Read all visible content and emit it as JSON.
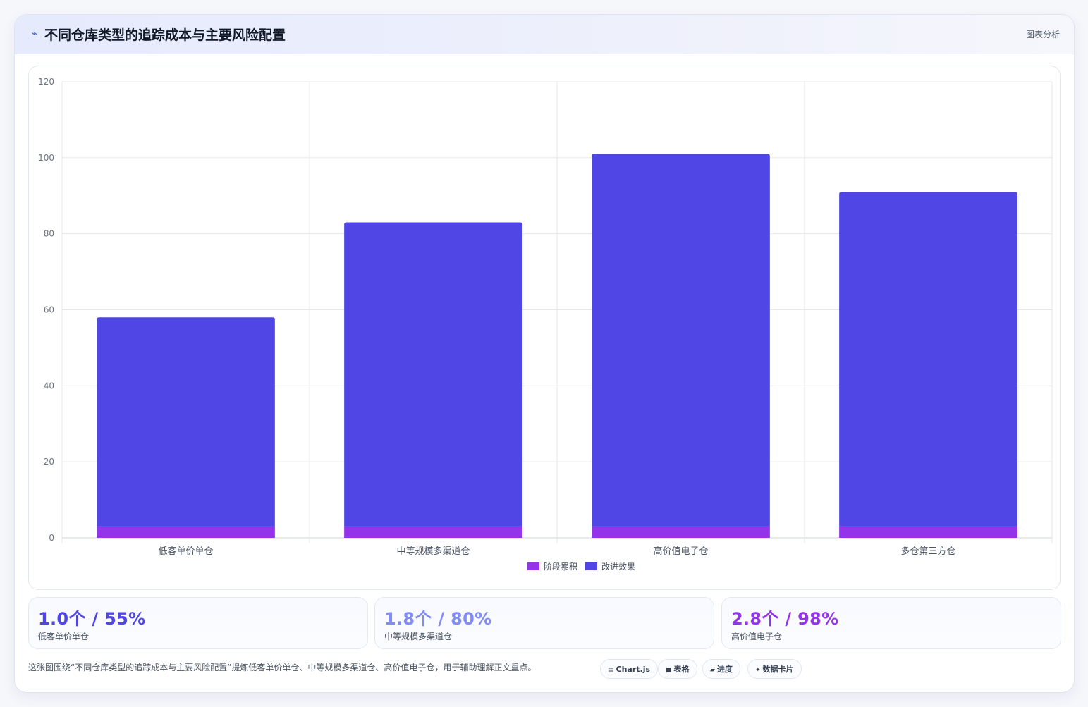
{
  "header": {
    "icon": "trend-line-icon",
    "title": "不同仓库类型的追踪成本与主要风险配置",
    "tag": "图表分析"
  },
  "colors": {
    "accent": "#4f46e5",
    "stage_series": "#9333ea",
    "improve_series": "#4f46e5",
    "stat1": "#4f46e5",
    "stat2": "#818cf8",
    "stat3": "#9333ea"
  },
  "chart_data": {
    "type": "bar",
    "stacked": true,
    "categories": [
      "低客单价单仓",
      "中等规模多渠道仓",
      "高价值电子仓",
      "多仓第三方仓"
    ],
    "series": [
      {
        "name": "阶段累积",
        "color": "#9333ea",
        "values": [
          3,
          3,
          3,
          3
        ]
      },
      {
        "name": "改进效果",
        "color": "#4f46e5",
        "values": [
          55,
          80,
          98,
          88
        ]
      }
    ],
    "ylim": [
      0,
      120
    ],
    "yticks": [
      0,
      20,
      40,
      60,
      80,
      100,
      120
    ],
    "grid": true,
    "legend": "bottom-center",
    "xlabel": "",
    "ylabel": ""
  },
  "stats": [
    {
      "value": "1.0个 / 55%",
      "label": "低客单价单仓"
    },
    {
      "value": "1.8个 / 80%",
      "label": "中等规模多渠道仓"
    },
    {
      "value": "2.8个 / 98%",
      "label": "高价值电子仓"
    }
  ],
  "caption": "这张图围绕“不同仓库类型的追踪成本与主要风险配置”提炼低客单价单仓、中等规模多渠道仓、高价值电子仓，用于辅助理解正文重点。",
  "chips": [
    {
      "icon": "chart-icon",
      "glyph": "▤",
      "label": "Chart.js"
    },
    {
      "icon": "table-icon",
      "glyph": "■",
      "label": "表格"
    },
    {
      "icon": "progress-icon",
      "glyph": "▰",
      "label": "进度"
    },
    {
      "icon": "sparkle-icon",
      "glyph": "✦",
      "label": "数据卡片"
    }
  ]
}
